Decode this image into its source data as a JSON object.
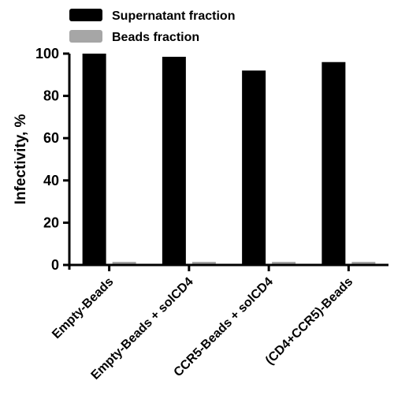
{
  "chart_data": {
    "type": "bar",
    "categories": [
      "Empty-Beads",
      "Empty-Beads + solCD4",
      "CCR5-Beads + solCD4",
      "(CD4+CCR5)-Beads"
    ],
    "series": [
      {
        "name": "Supernatant fraction",
        "color": "#000000",
        "values": [
          100,
          98.5,
          92,
          96
        ]
      },
      {
        "name": "Beads fraction",
        "color": "#a6a6a6",
        "values": [
          1.0,
          0.8,
          1.0,
          1.0
        ]
      }
    ],
    "ylabel": "Infectivity, %",
    "xlabel": "",
    "ylim": [
      0,
      100
    ],
    "yticks": [
      0,
      20,
      40,
      60,
      80,
      100
    ],
    "legend_position": "top-center",
    "grid": false
  }
}
